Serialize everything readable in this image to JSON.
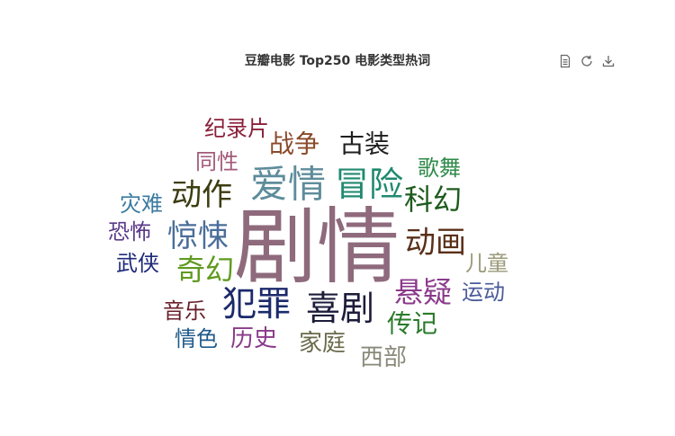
{
  "title": "豆瓣电影 Top250 电影类型热词",
  "toolbox": {
    "data_view_icon": "document-icon",
    "restore_icon": "refresh-icon",
    "save_image_icon": "download-icon"
  },
  "chart_data": {
    "type": "wordcloud",
    "words": [
      {
        "text": "剧情",
        "color": "#8e6a7c"
      },
      {
        "text": "爱情",
        "color": "#5e8c9b"
      },
      {
        "text": "冒险",
        "color": "#1f8a70"
      },
      {
        "text": "喜剧",
        "color": "#1c1c3a"
      },
      {
        "text": "犯罪",
        "color": "#1b2a6b"
      },
      {
        "text": "动作",
        "color": "#3d3d12"
      },
      {
        "text": "惊悚",
        "color": "#4a6e9a"
      },
      {
        "text": "动画",
        "color": "#5a3019"
      },
      {
        "text": "悬疑",
        "color": "#8b3a8b"
      },
      {
        "text": "科幻",
        "color": "#1e5b1e"
      },
      {
        "text": "奇幻",
        "color": "#5f9a1f"
      },
      {
        "text": "战争",
        "color": "#8a4a2a"
      },
      {
        "text": "古装",
        "color": "#1f1f1f"
      },
      {
        "text": "纪录片",
        "color": "#8a1f3a"
      },
      {
        "text": "同性",
        "color": "#a35a7a"
      },
      {
        "text": "歌舞",
        "color": "#2f8a4a"
      },
      {
        "text": "灾难",
        "color": "#3a7aa0"
      },
      {
        "text": "恐怖",
        "color": "#5a3a8a"
      },
      {
        "text": "武侠",
        "color": "#1f2a7a"
      },
      {
        "text": "儿童",
        "color": "#9a9a7a"
      },
      {
        "text": "运动",
        "color": "#4a5a9a"
      },
      {
        "text": "音乐",
        "color": "#6a1f2a"
      },
      {
        "text": "传记",
        "color": "#2a7a2a"
      },
      {
        "text": "情色",
        "color": "#1f5a8a"
      },
      {
        "text": "历史",
        "color": "#8a3a8a"
      },
      {
        "text": "家庭",
        "color": "#6a6a4a"
      },
      {
        "text": "西部",
        "color": "#8a8a7a"
      }
    ]
  }
}
